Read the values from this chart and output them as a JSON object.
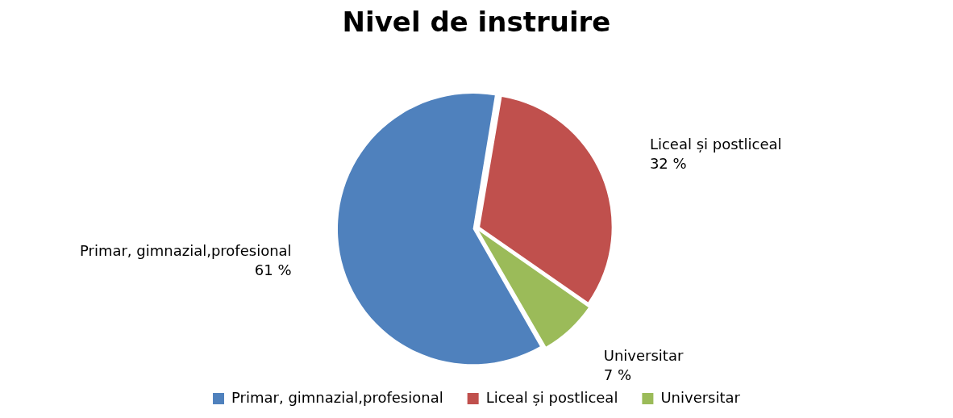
{
  "chart_data": {
    "type": "pie",
    "title": "Nivel de instruire",
    "categories": [
      "Primar, gimnazial,profesional",
      "Liceal și postliceal",
      "Universitar"
    ],
    "values": [
      61,
      32,
      7
    ],
    "colors": [
      "#4f81bd",
      "#c0504d",
      "#9bbb59"
    ],
    "value_labels": [
      "61 %",
      "32 %",
      "7 %"
    ],
    "legend": "bottom"
  }
}
